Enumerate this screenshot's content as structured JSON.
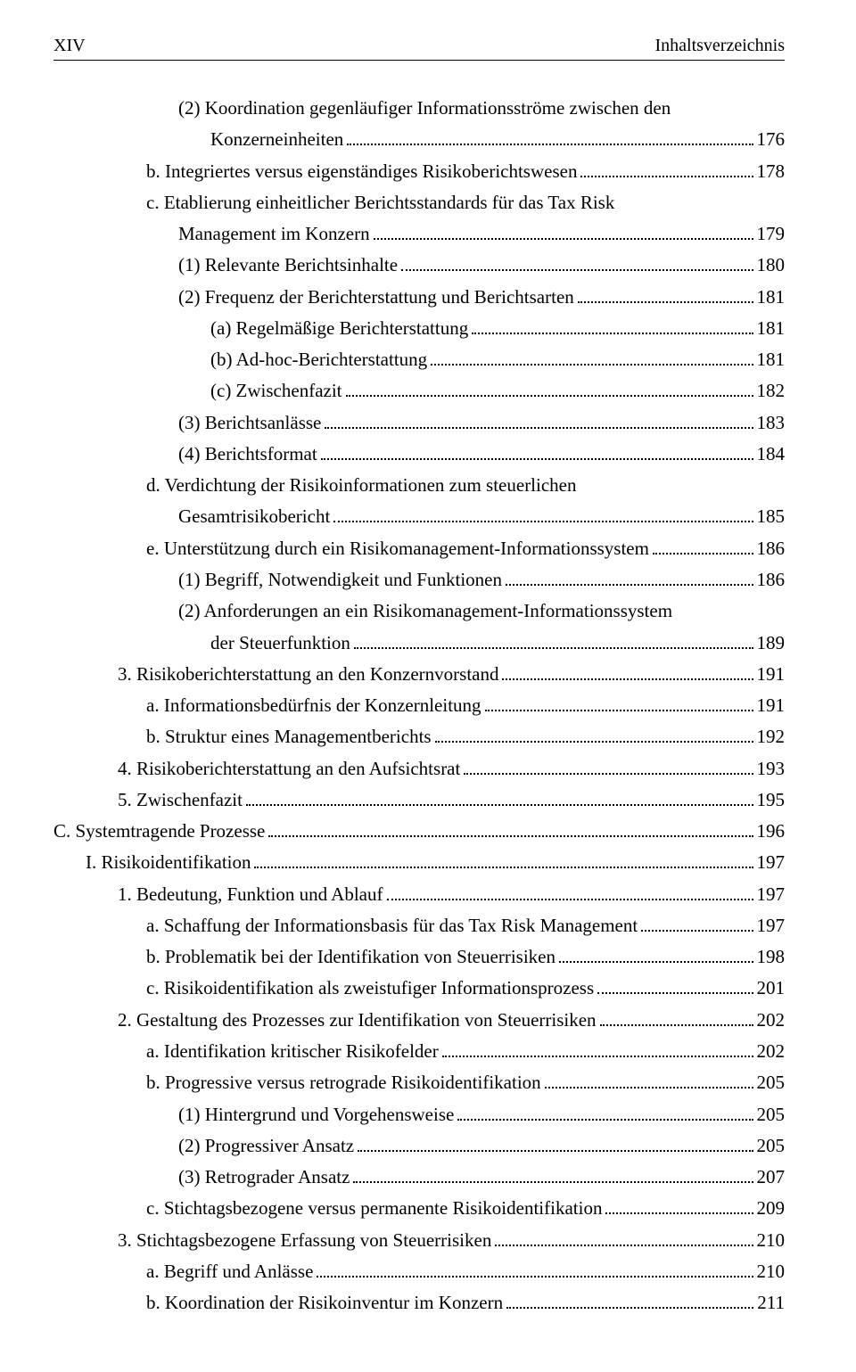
{
  "header": {
    "page_number": "XIV",
    "title": "Inhaltsverzeichnis"
  },
  "toc": {
    "e1": {
      "text": "(2) Koordination gegenläufiger Informationsströme zwischen den"
    },
    "e1c": {
      "text": "Konzerneinheiten",
      "page": "176"
    },
    "e2": {
      "text": "b. Integriertes versus eigenständiges Risikoberichtswesen",
      "page": "178"
    },
    "e3": {
      "text": "c. Etablierung einheitlicher Berichtsstandards für das Tax Risk"
    },
    "e3c": {
      "text": "Management im Konzern",
      "page": "179"
    },
    "e4": {
      "text": "(1) Relevante Berichtsinhalte",
      "page": "180"
    },
    "e5": {
      "text": "(2) Frequenz der Berichterstattung und Berichtsarten",
      "page": "181"
    },
    "e6": {
      "text": "(a) Regelmäßige Berichterstattung",
      "page": "181"
    },
    "e7": {
      "text": "(b) Ad-hoc-Berichterstattung",
      "page": "181"
    },
    "e8": {
      "text": "(c) Zwischenfazit",
      "page": "182"
    },
    "e9": {
      "text": "(3) Berichtsanlässe",
      "page": "183"
    },
    "e10": {
      "text": "(4) Berichtsformat",
      "page": "184"
    },
    "e11": {
      "text": "d. Verdichtung der Risikoinformationen zum steuerlichen"
    },
    "e11c": {
      "text": "Gesamtrisikobericht",
      "page": "185"
    },
    "e12": {
      "text": "e. Unterstützung durch ein Risikomanagement-Informationssystem",
      "page": "186"
    },
    "e13": {
      "text": "(1) Begriff, Notwendigkeit und Funktionen",
      "page": "186"
    },
    "e14": {
      "text": "(2) Anforderungen an ein Risikomanagement-Informationssystem"
    },
    "e14c": {
      "text": "der Steuerfunktion",
      "page": "189"
    },
    "e15": {
      "text": "3. Risikoberichterstattung an den Konzernvorstand",
      "page": "191"
    },
    "e16": {
      "text": "a. Informationsbedürfnis der Konzernleitung",
      "page": "191"
    },
    "e17": {
      "text": "b. Struktur eines Managementberichts",
      "page": "192"
    },
    "e18": {
      "text": "4. Risikoberichterstattung an den Aufsichtsrat",
      "page": "193"
    },
    "e19": {
      "text": "5. Zwischenfazit",
      "page": "195"
    },
    "e20": {
      "text": "C.  Systemtragende Prozesse",
      "page": "196"
    },
    "e21": {
      "text": "I.    Risikoidentifikation",
      "page": "197"
    },
    "e22": {
      "text": "1. Bedeutung, Funktion und Ablauf",
      "page": "197"
    },
    "e23": {
      "text": "a. Schaffung der Informationsbasis für das Tax Risk Management",
      "page": "197"
    },
    "e24": {
      "text": "b. Problematik bei der Identifikation von Steuerrisiken",
      "page": "198"
    },
    "e25": {
      "text": "c. Risikoidentifikation als zweistufiger Informationsprozess",
      "page": "201"
    },
    "e26": {
      "text": "2. Gestaltung des Prozesses zur Identifikation von Steuerrisiken",
      "page": "202"
    },
    "e27": {
      "text": "a. Identifikation kritischer Risikofelder",
      "page": "202"
    },
    "e28": {
      "text": "b. Progressive versus retrograde Risikoidentifikation",
      "page": "205"
    },
    "e29": {
      "text": "(1) Hintergrund und Vorgehensweise",
      "page": "205"
    },
    "e30": {
      "text": "(2) Progressiver Ansatz",
      "page": "205"
    },
    "e31": {
      "text": "(3) Retrograder Ansatz",
      "page": "207"
    },
    "e32": {
      "text": "c. Stichtagsbezogene versus permanente Risikoidentifikation",
      "page": "209"
    },
    "e33": {
      "text": "3. Stichtagsbezogene Erfassung von Steuerrisiken",
      "page": "210"
    },
    "e34": {
      "text": "a. Begriff und Anlässe",
      "page": "210"
    },
    "e35": {
      "text": "b. Koordination der Risikoinventur im Konzern",
      "page": "211"
    }
  }
}
